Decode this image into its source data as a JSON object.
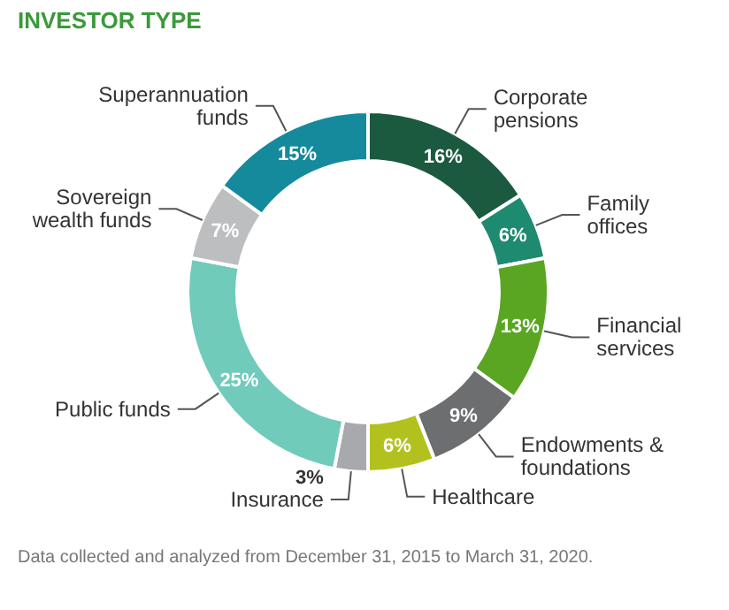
{
  "chart_data": {
    "type": "donut",
    "title": "INVESTOR TYPE",
    "categories": [
      "Corporate pensions",
      "Family offices",
      "Financial services",
      "Endowments & foundations",
      "Healthcare",
      "Insurance",
      "Public funds",
      "Sovereign wealth funds",
      "Superannuation funds"
    ],
    "values": [
      16,
      6,
      13,
      9,
      6,
      3,
      25,
      7,
      15
    ],
    "value_labels": [
      "16%",
      "6%",
      "13%",
      "9%",
      "6%",
      "3%",
      "25%",
      "7%",
      "15%"
    ],
    "colors": [
      "#1b5a3f",
      "#1e8a70",
      "#5aa623",
      "#6d6e70",
      "#b3c11e",
      "#a7a9ac",
      "#70cbbb",
      "#bcbec0",
      "#158a9c"
    ],
    "legend": false,
    "annotations": [
      "Data collected and analyzed from December 31, 2015 to March 31, 2020."
    ]
  }
}
